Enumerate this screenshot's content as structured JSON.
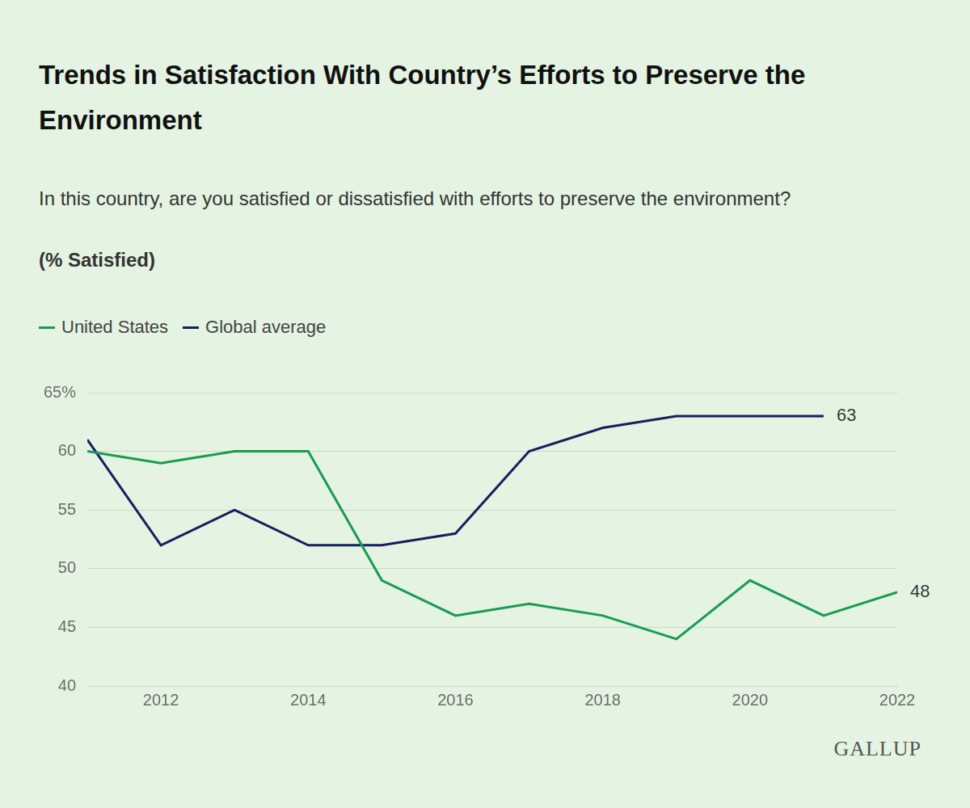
{
  "chart_data": {
    "type": "line",
    "title": "Trends in Satisfaction With Country’s Efforts to Preserve the Environment",
    "subtitle": "In this country, are you satisfied or dissatisfied with efforts to preserve the environment?",
    "y_label": "(% Satisfied)",
    "source": "GALLUP",
    "x": [
      2011,
      2012,
      2013,
      2014,
      2015,
      2016,
      2017,
      2018,
      2019,
      2020,
      2021,
      2022
    ],
    "series": [
      {
        "name": "United States",
        "color": "#179c52",
        "values": [
          60,
          59,
          60,
          60,
          49,
          46,
          47,
          46,
          44,
          49,
          46,
          48
        ],
        "value_labels": [
          null,
          null,
          null,
          null,
          null,
          null,
          null,
          null,
          null,
          null,
          null,
          "48"
        ]
      },
      {
        "name": "Global average",
        "color": "#13205e",
        "values": [
          61,
          52,
          55,
          52,
          52,
          53,
          60,
          62,
          63,
          63,
          63,
          null
        ],
        "value_labels": [
          null,
          null,
          null,
          null,
          null,
          null,
          null,
          null,
          null,
          null,
          "63",
          null
        ]
      }
    ],
    "xlim": [
      2011,
      2022
    ],
    "xticks": [
      2012,
      2014,
      2016,
      2018,
      2020,
      2022
    ],
    "ylim": [
      40,
      65
    ],
    "yticks": [
      40,
      45,
      50,
      55,
      60,
      {
        "value": 65,
        "label": "65%"
      }
    ],
    "grid": true,
    "legend": "top-left"
  }
}
